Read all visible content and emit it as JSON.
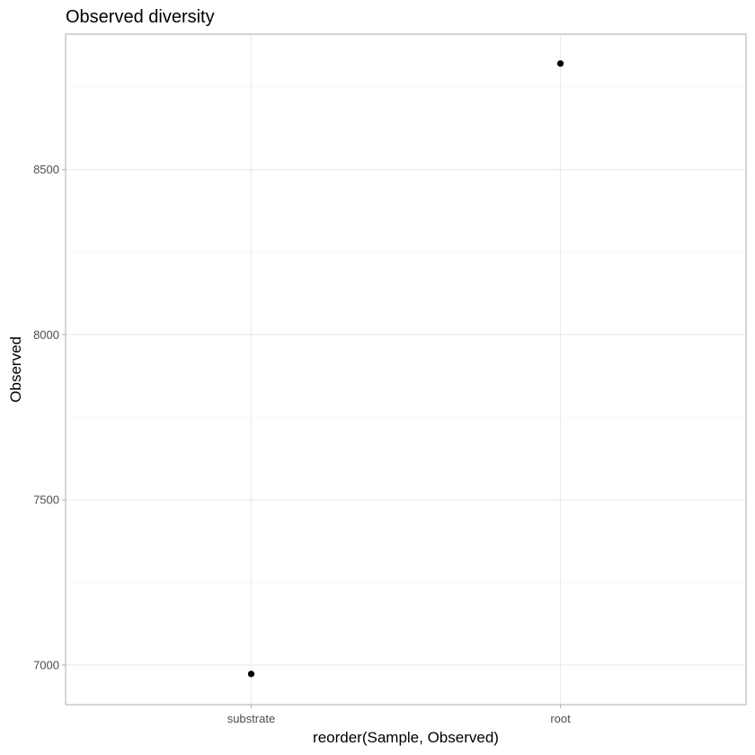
{
  "chart_data": {
    "type": "scatter",
    "title": "Observed diversity",
    "xlabel": "reorder(Sample, Observed)",
    "ylabel": "Observed",
    "categories": [
      "substrate",
      "root"
    ],
    "series": [
      {
        "points": [
          {
            "x": "substrate",
            "y": 6973
          },
          {
            "x": "root",
            "y": 8821
          }
        ]
      }
    ],
    "ylim": [
      6880,
      8910
    ],
    "yticks": [
      7000,
      7500,
      8000,
      8500
    ],
    "grid": true,
    "legend": "none",
    "point_color": "#000000",
    "theme": "light"
  }
}
